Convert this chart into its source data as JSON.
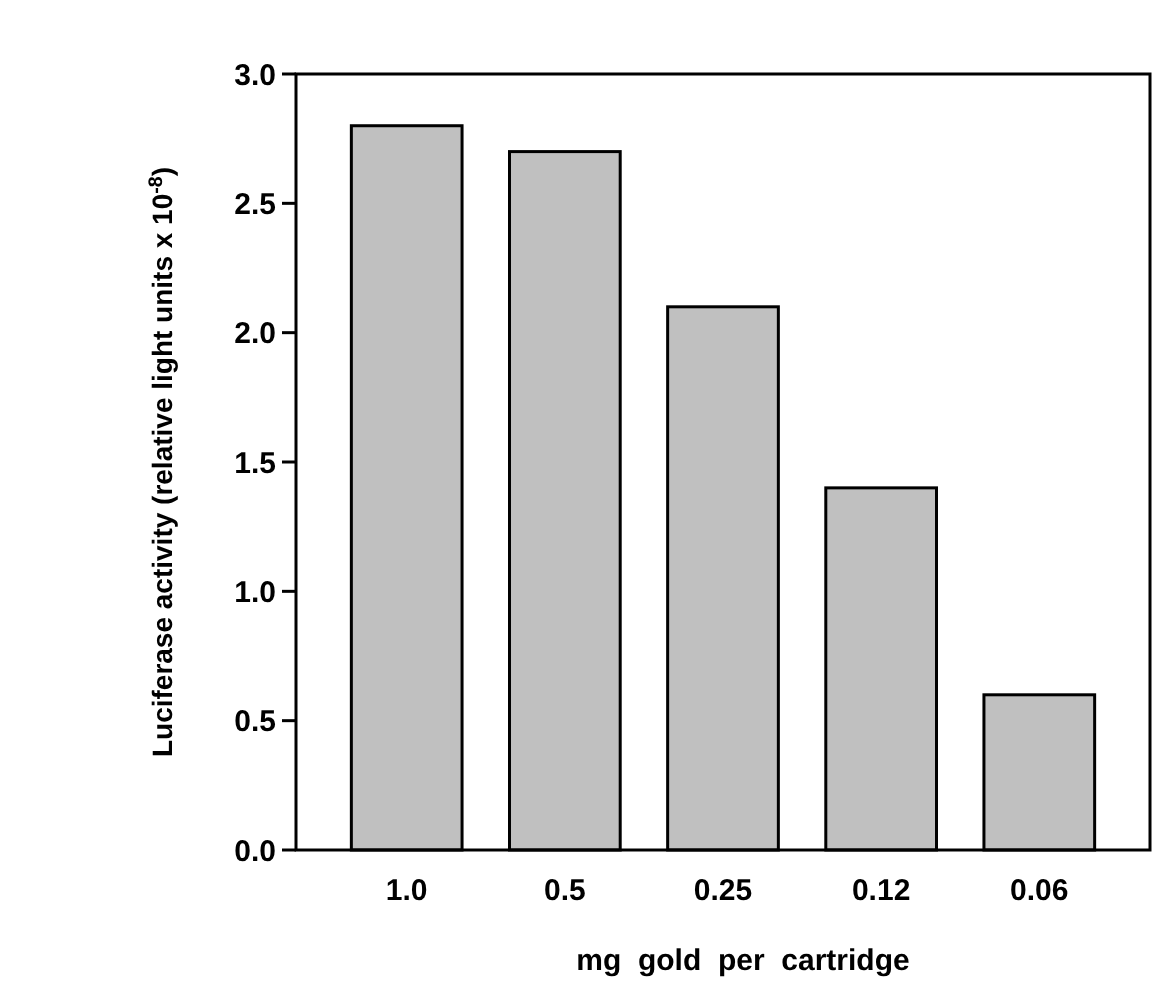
{
  "chart_data": {
    "type": "bar",
    "xlabel": "mg  gold  per  cartridge",
    "ylabel": "Luciferase activity (relative light units x 10$^{-8}$)",
    "categories": [
      "1.0",
      "0.5",
      "0.25",
      "0.12",
      "0.06"
    ],
    "values": [
      2.8,
      2.7,
      2.1,
      1.4,
      0.6
    ],
    "color": "#c0c0c0",
    "ylim": [
      0,
      3.0
    ],
    "yticks": [
      {
        "value": 0,
        "label": "0.0"
      },
      {
        "value": 0.5,
        "label": "0.5"
      },
      {
        "value": 1,
        "label": "1.0"
      },
      {
        "value": 1.5,
        "label": "1.5"
      },
      {
        "value": 2,
        "label": "2.0"
      },
      {
        "value": 2.5,
        "label": "2.5"
      },
      {
        "value": 3,
        "label": "3.0"
      }
    ],
    "grid": false
  }
}
